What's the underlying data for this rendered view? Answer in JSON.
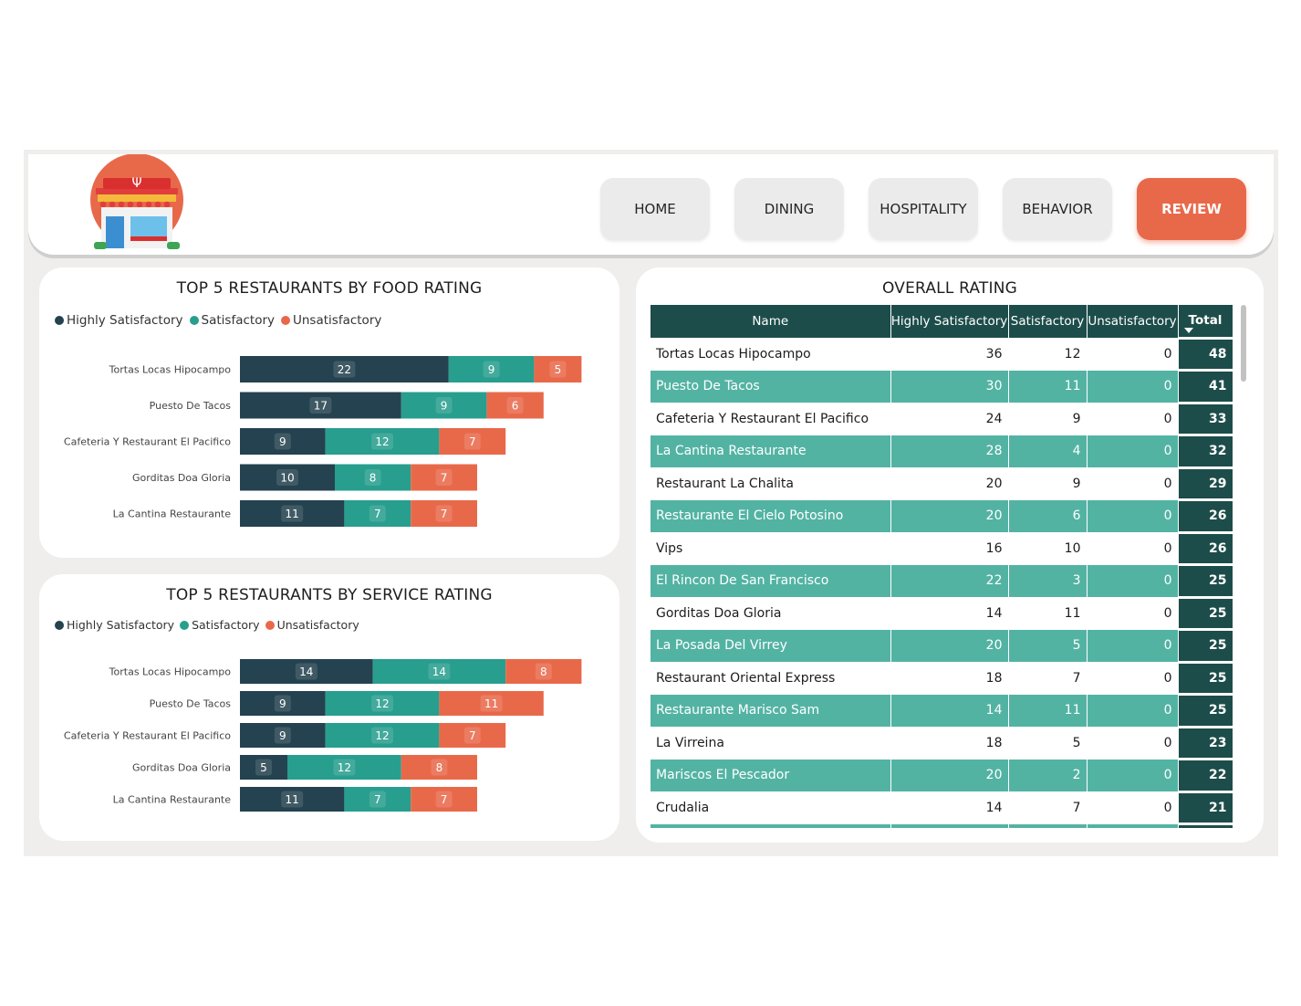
{
  "nav": {
    "items": [
      {
        "label": "HOME",
        "active": false
      },
      {
        "label": "DINING",
        "active": false
      },
      {
        "label": "HOSPITALITY",
        "active": false
      },
      {
        "label": "BEHAVIOR",
        "active": false
      },
      {
        "label": "REVIEW",
        "active": true
      }
    ],
    "logo_icon": "restaurant-storefront-icon"
  },
  "colors": {
    "highly_satisfactory": "#24424f",
    "satisfactory": "#289e8e",
    "unsatisfactory": "#e8694a",
    "accent": "#e8694a",
    "table_header": "#1d4d4a",
    "table_band": "#53b3a3"
  },
  "food_chart": {
    "title": "TOP 5 RESTAURANTS BY FOOD RATING",
    "legend": [
      "Highly Satisfactory",
      "Satisfactory",
      "Unsatisfactory"
    ]
  },
  "service_chart": {
    "title": "TOP 5 RESTAURANTS BY SERVICE RATING",
    "legend": [
      "Highly Satisfactory",
      "Satisfactory",
      "Unsatisfactory"
    ]
  },
  "chart_data": [
    {
      "type": "bar",
      "orientation": "horizontal",
      "stacked": true,
      "title": "TOP 5 RESTAURANTS BY FOOD RATING",
      "categories": [
        "Tortas Locas Hipocampo",
        "Puesto De Tacos",
        "Cafeteria Y Restaurant El Pacifico",
        "Gorditas Doa Gloria",
        "La Cantina Restaurante"
      ],
      "series": [
        {
          "name": "Highly Satisfactory",
          "values": [
            22,
            17,
            9,
            10,
            11
          ]
        },
        {
          "name": "Satisfactory",
          "values": [
            9,
            9,
            12,
            8,
            7
          ]
        },
        {
          "name": "Unsatisfactory",
          "values": [
            5,
            6,
            7,
            7,
            7
          ]
        }
      ],
      "legend_position": "top-left",
      "grid": false
    },
    {
      "type": "bar",
      "orientation": "horizontal",
      "stacked": true,
      "title": "TOP 5 RESTAURANTS BY SERVICE RATING",
      "categories": [
        "Tortas Locas Hipocampo",
        "Puesto De Tacos",
        "Cafeteria Y Restaurant El Pacifico",
        "Gorditas Doa Gloria",
        "La Cantina Restaurante"
      ],
      "series": [
        {
          "name": "Highly Satisfactory",
          "values": [
            14,
            9,
            9,
            5,
            11
          ]
        },
        {
          "name": "Satisfactory",
          "values": [
            14,
            12,
            12,
            12,
            7
          ]
        },
        {
          "name": "Unsatisfactory",
          "values": [
            8,
            11,
            7,
            8,
            7
          ]
        }
      ],
      "legend_position": "top-left",
      "grid": false
    }
  ],
  "overall_table": {
    "title": "OVERALL RATING",
    "columns": [
      "Name",
      "Highly Satisfactory",
      "Satisfactory",
      "Unsatisfactory",
      "Total"
    ],
    "rows": [
      [
        "Tortas Locas Hipocampo",
        "36",
        "12",
        "0",
        "48"
      ],
      [
        "Puesto De Tacos",
        "30",
        "11",
        "0",
        "41"
      ],
      [
        "Cafeteria Y Restaurant El Pacifico",
        "24",
        "9",
        "0",
        "33"
      ],
      [
        "La Cantina Restaurante",
        "28",
        "4",
        "0",
        "32"
      ],
      [
        "Restaurant La Chalita",
        "20",
        "9",
        "0",
        "29"
      ],
      [
        "Restaurante El Cielo Potosino",
        "20",
        "6",
        "0",
        "26"
      ],
      [
        "Vips",
        "16",
        "10",
        "0",
        "26"
      ],
      [
        "El Rincon De San Francisco",
        "22",
        "3",
        "0",
        "25"
      ],
      [
        "Gorditas Doa Gloria",
        "14",
        "11",
        "0",
        "25"
      ],
      [
        "La Posada Del Virrey",
        "20",
        "5",
        "0",
        "25"
      ],
      [
        "Restaurant Oriental Express",
        "18",
        "7",
        "0",
        "25"
      ],
      [
        "Restaurante Marisco Sam",
        "14",
        "11",
        "0",
        "25"
      ],
      [
        "La Virreina",
        "18",
        "5",
        "0",
        "23"
      ],
      [
        "Mariscos El Pescador",
        "20",
        "2",
        "0",
        "22"
      ],
      [
        "Crudalia",
        "14",
        "7",
        "0",
        "21"
      ]
    ]
  }
}
